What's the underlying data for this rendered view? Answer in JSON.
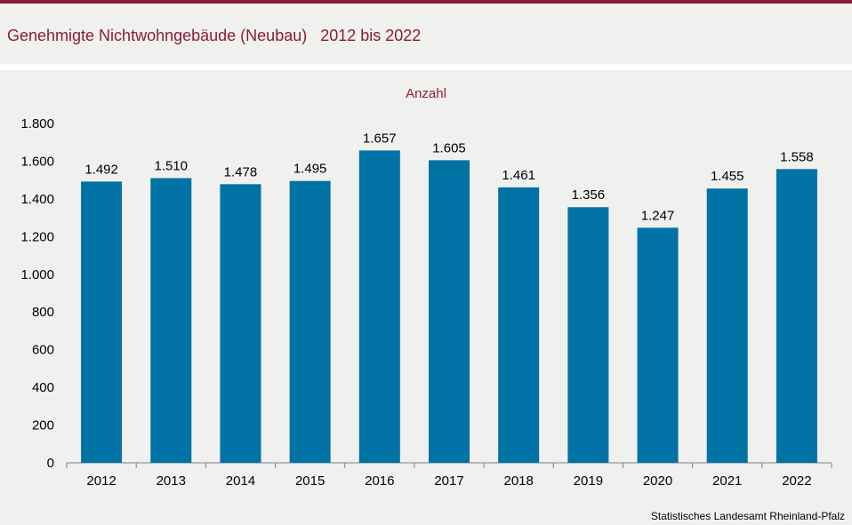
{
  "colors": {
    "accent": "#8b1c35",
    "bar": "#0072a3",
    "axis": "#808080",
    "background": "#f0f0ee"
  },
  "header": {
    "title": "Genehmigte Nichtwohngebäude (Neubau)   2012 bis 2022"
  },
  "chart_data": {
    "type": "bar",
    "title": "Genehmigte Nichtwohngebäude (Neubau)   2012 bis 2022",
    "unit_label": "Anzahl",
    "categories": [
      "2012",
      "2013",
      "2014",
      "2015",
      "2016",
      "2017",
      "2018",
      "2019",
      "2020",
      "2021",
      "2022"
    ],
    "values": [
      1492,
      1510,
      1478,
      1495,
      1657,
      1605,
      1461,
      1356,
      1247,
      1455,
      1558
    ],
    "value_labels": [
      "1.492",
      "1.510",
      "1.478",
      "1.495",
      "1.657",
      "1.605",
      "1.461",
      "1.356",
      "1.247",
      "1.455",
      "1.558"
    ],
    "y_ticks": [
      0,
      200,
      400,
      600,
      800,
      1000,
      1200,
      1400,
      1600,
      1800
    ],
    "y_tick_labels": [
      "0",
      "200",
      "400",
      "600",
      "800",
      "1.000",
      "1.200",
      "1.400",
      "1.600",
      "1.800"
    ],
    "ylim": [
      0,
      1800
    ],
    "grid": false,
    "legend": "none"
  },
  "footer": {
    "source": "Statistisches Landesamt  Rheinland-Pfalz"
  }
}
